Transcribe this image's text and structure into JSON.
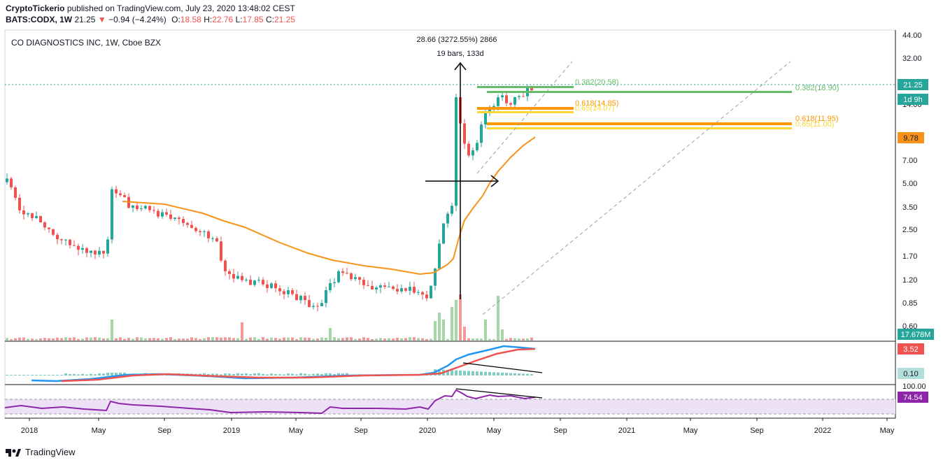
{
  "header": {
    "author": "CryptoTickerio",
    "published": "published on TradingView.com, July 23, 2020 13:48:02 CEST",
    "symbol": "BATS:CODX, 1W",
    "last": "21.25",
    "change_arrow": "▼",
    "change": "−0.94 (−4.24%)",
    "open_label": "O:",
    "open": "18.58",
    "high_label": "H:",
    "high": "22.76",
    "low_label": "L:",
    "low": "17.85",
    "close_label": "C:",
    "close": "21.25"
  },
  "chart_title": "CO DIAGNOSTICS INC, 1W, Cboe BZX",
  "annotations": {
    "measure_line1": "28.66 (3272.55%) 2866",
    "measure_line2": "19 bars, 133d",
    "fib1_382": "0.382(20.58)",
    "fib1_618": "0.618(14.85)",
    "fib1_65": "0.65(14.07)",
    "fib2_382": "0.382(18.90)",
    "fib2_618": "0.618(11.95)",
    "fib2_65": "0.65(11.00)"
  },
  "price_badges": {
    "last": "21.25",
    "countdown": "1d 9h",
    "ma": "9.78",
    "volume": "17.678M",
    "macd": "3.52",
    "macd_hist": "0.10",
    "rsi": "74.54"
  },
  "brand": "TradingView",
  "colors": {
    "up": "#26a69a",
    "down": "#ef5350",
    "ma": "#f7931a",
    "macd": "#2196f3",
    "signal": "#ef5350",
    "rsi": "#8e24aa",
    "fib_green": "#66bb6a",
    "fib_orange": "#ff9800",
    "fib_yellow": "#fdd835"
  },
  "chart_data": {
    "type": "candlestick",
    "title": "CO DIAGNOSTICS INC, 1W, Cboe BZX",
    "y_scale": "log",
    "y_ticks": [
      "44.00",
      "32.00",
      "21.00",
      "14.00",
      "9.78",
      "7.00",
      "5.00",
      "3.50",
      "2.50",
      "1.70",
      "1.20",
      "0.85",
      "0.60"
    ],
    "x_ticks": [
      "2018",
      "May",
      "Sep",
      "2019",
      "May",
      "Sep",
      "2020",
      "May",
      "Sep",
      "2021",
      "May",
      "Sep",
      "2022",
      "May"
    ],
    "rsi_ticks": [
      "100.00"
    ],
    "key_points": [
      {
        "date": "2017-10",
        "close": 4.9
      },
      {
        "date": "2018-05",
        "high": 6.5,
        "close": 4.0
      },
      {
        "date": "2018-12",
        "close": 1.5
      },
      {
        "date": "2019-06",
        "low": 0.62
      },
      {
        "date": "2019-07",
        "high": 2.0
      },
      {
        "date": "2020-01",
        "close": 0.95
      },
      {
        "date": "2020-03",
        "high": 21.0
      },
      {
        "date": "2020-04",
        "low": 6.5
      },
      {
        "date": "2020-05",
        "high": 29.0
      },
      {
        "date": "2020-07-20",
        "open": 18.58,
        "high": 22.76,
        "low": 17.85,
        "close": 21.25
      }
    ]
  }
}
